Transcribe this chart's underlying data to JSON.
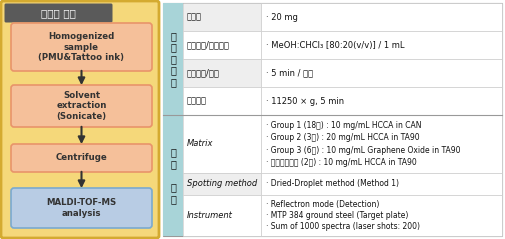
{
  "left_panel": {
    "title": "전처리 과정",
    "title_bg": "#5a5a5a",
    "title_fg": "#ffffff",
    "panel_bg": "#f5d87a",
    "border_color": "#d4aa30",
    "boxes": [
      {
        "label": "Homogenized\nsample\n(PMU&Tattoo ink)",
        "bg": "#f5c09a",
        "border": "#e8946a"
      },
      {
        "label": "Solvent\nextraction\n(Sonicate)",
        "bg": "#f5c09a",
        "border": "#e8946a"
      },
      {
        "label": "Centrifuge",
        "bg": "#f5c09a",
        "border": "#e8946a"
      },
      {
        "label": "MALDI-TOF-MS\nanalysis",
        "bg": "#b8cce4",
        "border": "#7aaad0"
      }
    ]
  },
  "right_panel": {
    "sec1_label": "전\n처\n리\n조\n건",
    "sec2_label": "분\n석\n\n조\n건",
    "section_label_bg": "#a8d4d8",
    "row_bg_alt": "#efefef",
    "rows_section1": [
      {
        "label": "시료량",
        "value": "· 20 mg"
      },
      {
        "label": "추출용매/용매용량",
        "value": "· MeOH:CHCl₃ [80:20(v/v)] / 1 mL"
      },
      {
        "label": "추출시간/온도",
        "value": "· 5 min / 실온"
      },
      {
        "label": "원심분리",
        "value": "· 11250 × g, 5 min"
      }
    ],
    "rows_section2": [
      {
        "label": "Matrix",
        "value": "· Group 1 (18종) : 10 mg/mL HCCA in CAN\n· Group 2 (3종) : 20 mg/mL HCCA in TA90\n· Group 3 (6종) : 10 mg/mL Graphene Oxide in TA90\n· 개별분석성분 (2종) : 10 mg/mL HCCA in TA90"
      },
      {
        "label": "Spotting method",
        "value": "· Dried-Droplet method (Method 1)"
      },
      {
        "label": "Instrument",
        "value": "· Reflectron mode (Detection)\n· MTP 384 ground steel (Target plate)\n· Sum of 1000 spectra (laser shots: 200)"
      }
    ]
  }
}
